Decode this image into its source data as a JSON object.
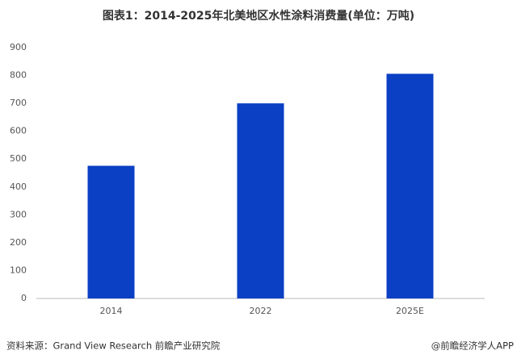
{
  "chart_data": {
    "type": "bar",
    "title": "图表1：2014-2025年北美地区水性涂料消费量(单位：万吨)",
    "categories": [
      "2014",
      "2022",
      "2025E"
    ],
    "values": [
      476,
      700,
      806
    ],
    "color": "#0b3fc4",
    "ylim": [
      0,
      900
    ],
    "yticks": [
      0,
      100,
      200,
      300,
      400,
      500,
      600,
      700,
      800,
      900
    ],
    "grid": false
  },
  "footer": {
    "source": "资料来源：Grand View Research 前瞻产业研究院",
    "credit": "@前瞻经济学人APP"
  }
}
